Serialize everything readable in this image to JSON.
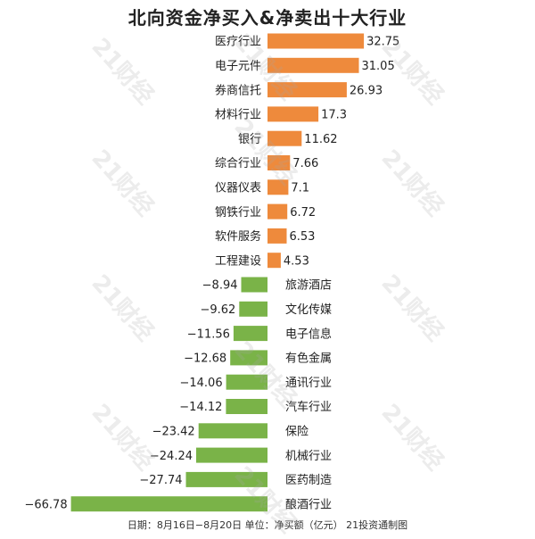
{
  "title": "北向资金净买入&净卖出十大行业",
  "footer": "日期：8月16日−8月20日 单位：净买额（亿元） 21投资通制图",
  "watermark": "21财经",
  "colors": {
    "positive": "#ee8a3c",
    "negative": "#7ab348"
  },
  "chart_data": {
    "type": "bar",
    "orientation": "horizontal",
    "title": "北向资金净买入&净卖出十大行业",
    "categories": [
      "医疗行业",
      "电子元件",
      "券商信托",
      "材料行业",
      "银行",
      "综合行业",
      "仪器仪表",
      "钢铁行业",
      "软件服务",
      "工程建设",
      "旅游酒店",
      "文化传媒",
      "电子信息",
      "有色金属",
      "通讯行业",
      "汽车行业",
      "保险",
      "机械行业",
      "医药制造",
      "酿酒行业"
    ],
    "values": [
      32.75,
      31.05,
      26.93,
      17.3,
      11.62,
      7.66,
      7.1,
      6.72,
      6.53,
      4.53,
      -8.94,
      -9.62,
      -11.56,
      -12.68,
      -14.06,
      -14.12,
      -23.42,
      -24.24,
      -27.74,
      -66.78
    ],
    "value_labels": [
      "32.75",
      "31.05",
      "26.93",
      "17.3",
      "11.62",
      "7.66",
      "7.1",
      "6.72",
      "6.53",
      "4.53",
      "−8.94",
      "−9.62",
      "−11.56",
      "−12.68",
      "−14.06",
      "−14.12",
      "−23.42",
      "−24.24",
      "−27.74",
      "−66.78"
    ],
    "grid": false,
    "legend": "none"
  }
}
